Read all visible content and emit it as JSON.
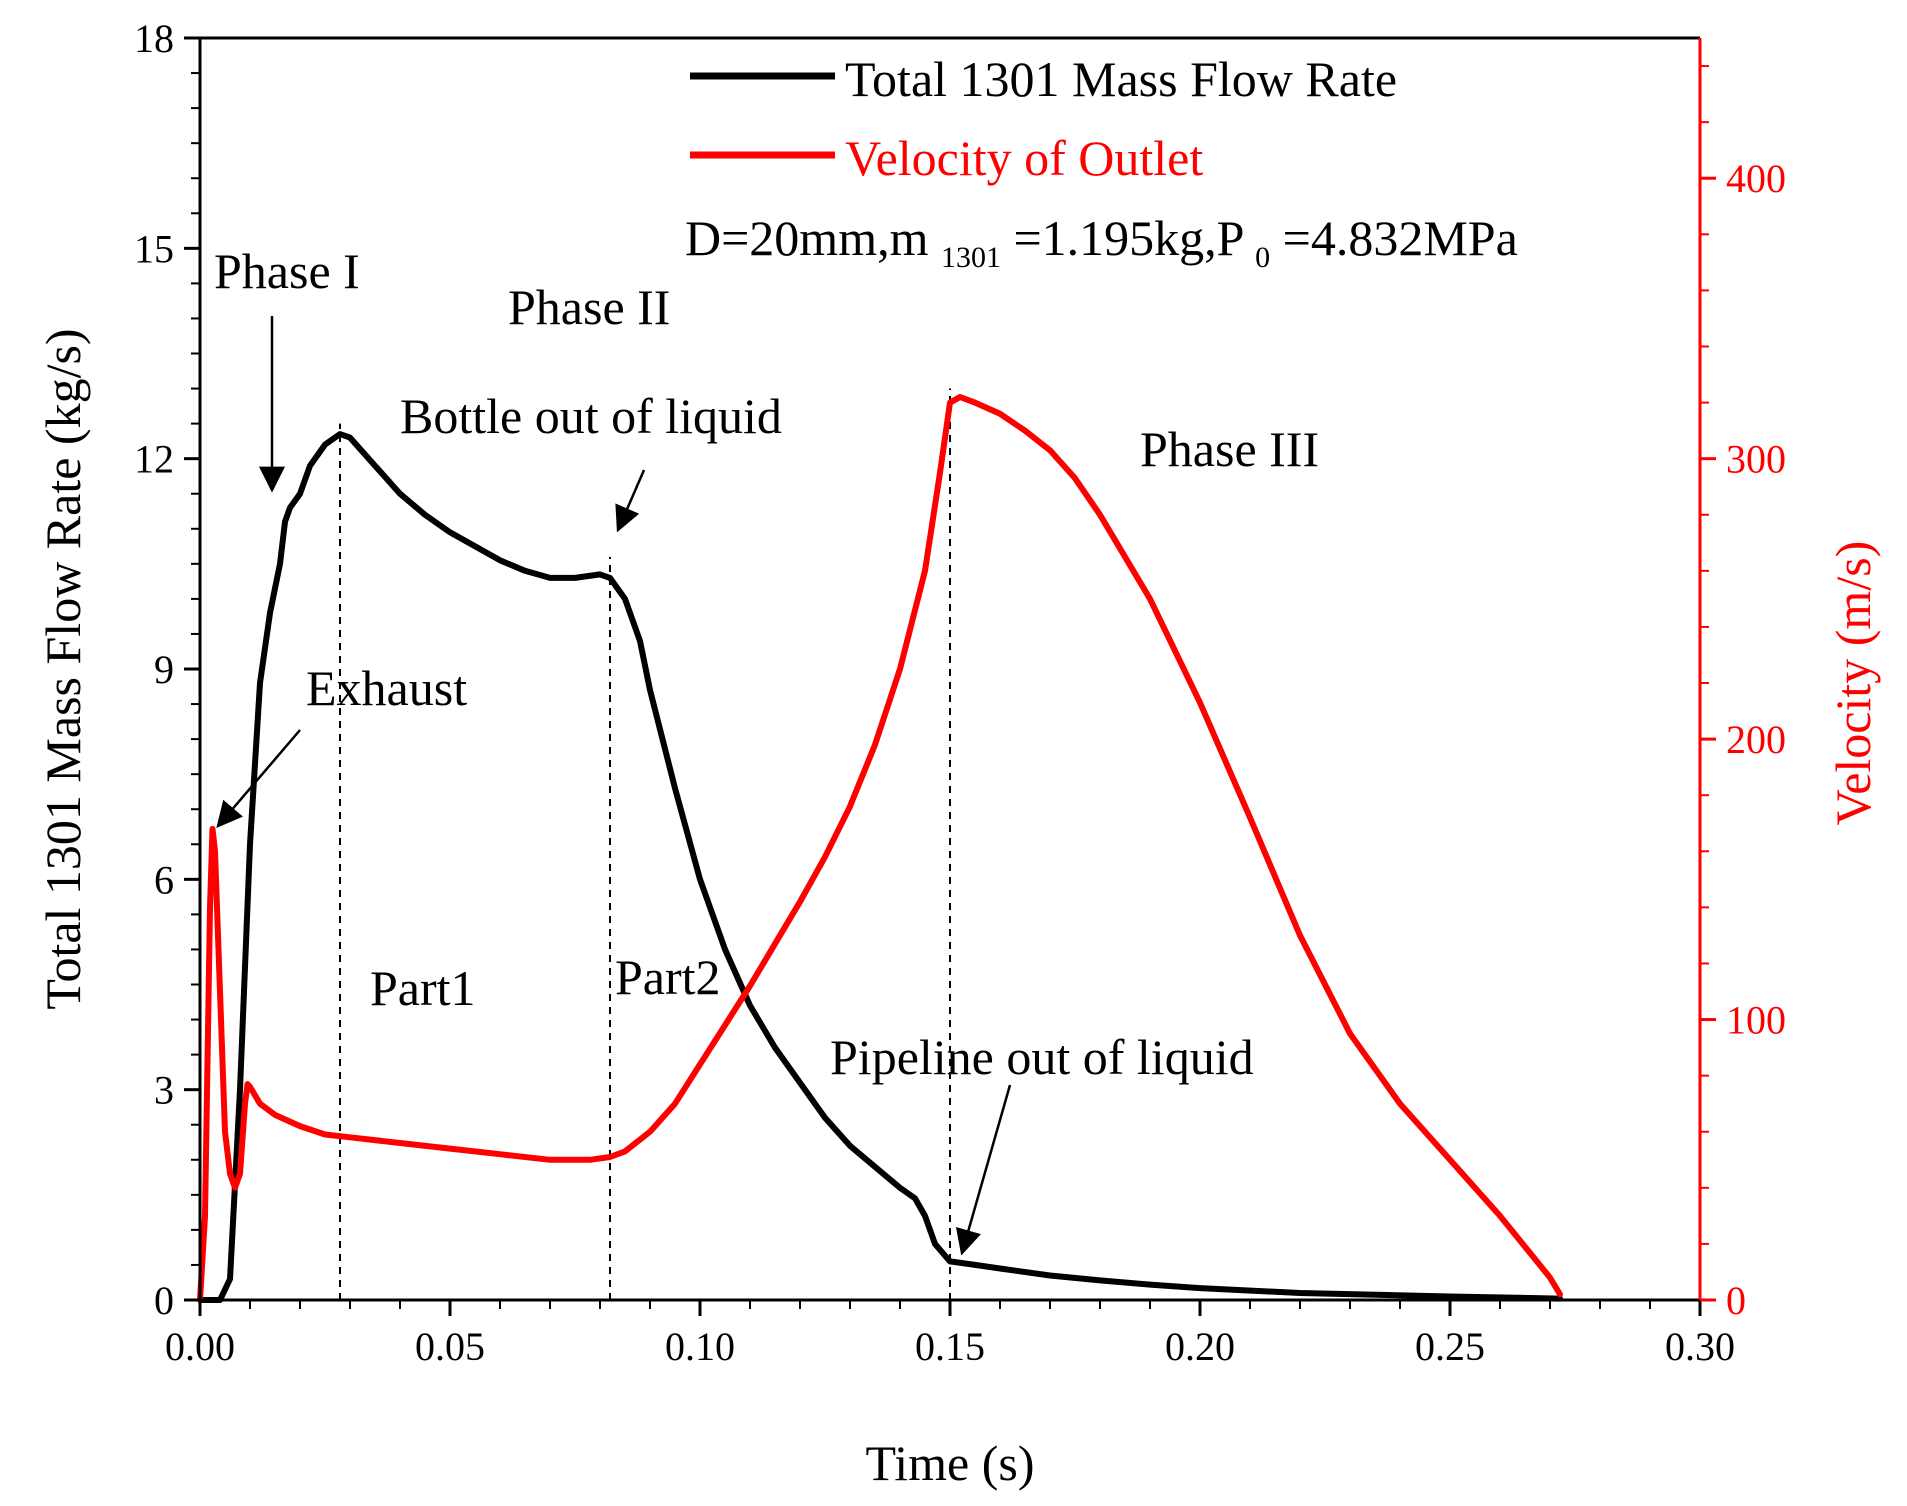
{
  "chart_data": {
    "type": "line",
    "legend_position": "top-right",
    "grid": false,
    "colors": {
      "mass": "#000000",
      "velocity": "#ff0000"
    },
    "xlabel": "Time (s)",
    "ylabel_left": "Total 1301 Mass Flow Rate (kg/s)",
    "ylabel_right": "Velocity (m/s)",
    "xlim": [
      0,
      0.3
    ],
    "ylim_left": [
      0,
      18
    ],
    "ylim_right": [
      0,
      450
    ],
    "x_ticks": [
      "0.00",
      "0.05",
      "0.10",
      "0.15",
      "0.20",
      "0.25",
      "0.30"
    ],
    "x_tick_values": [
      0,
      0.05,
      0.1,
      0.15,
      0.2,
      0.25,
      0.3
    ],
    "y_left_ticks": [
      "0",
      "3",
      "6",
      "9",
      "12",
      "15",
      "18"
    ],
    "y_left_tick_values": [
      0,
      3,
      6,
      9,
      12,
      15,
      18
    ],
    "y_right_ticks": [
      "0",
      "100",
      "200",
      "300",
      "400"
    ],
    "y_right_tick_values": [
      0,
      100,
      200,
      300,
      400
    ],
    "condition": {
      "prefix": "D=20mm,m",
      "m_sub": "1301",
      "middle": "=1.195kg,P",
      "p_sub": "0",
      "suffix": "=4.832MPa"
    },
    "series": [
      {
        "name": "Total 1301 Mass Flow Rate",
        "axis": "left",
        "color": "#000000",
        "points": [
          [
            0,
            0
          ],
          [
            0.004,
            0
          ],
          [
            0.006,
            0.3
          ],
          [
            0.008,
            3.0
          ],
          [
            0.01,
            6.5
          ],
          [
            0.012,
            8.8
          ],
          [
            0.014,
            9.8
          ],
          [
            0.016,
            10.5
          ],
          [
            0.017,
            11.1
          ],
          [
            0.018,
            11.3
          ],
          [
            0.02,
            11.5
          ],
          [
            0.022,
            11.9
          ],
          [
            0.025,
            12.2
          ],
          [
            0.028,
            12.35
          ],
          [
            0.03,
            12.3
          ],
          [
            0.035,
            11.9
          ],
          [
            0.04,
            11.5
          ],
          [
            0.045,
            11.2
          ],
          [
            0.05,
            10.95
          ],
          [
            0.055,
            10.75
          ],
          [
            0.06,
            10.55
          ],
          [
            0.065,
            10.4
          ],
          [
            0.07,
            10.3
          ],
          [
            0.075,
            10.3
          ],
          [
            0.08,
            10.35
          ],
          [
            0.082,
            10.3
          ],
          [
            0.085,
            10.0
          ],
          [
            0.088,
            9.4
          ],
          [
            0.09,
            8.7
          ],
          [
            0.095,
            7.3
          ],
          [
            0.1,
            6.0
          ],
          [
            0.105,
            5.0
          ],
          [
            0.11,
            4.2
          ],
          [
            0.115,
            3.6
          ],
          [
            0.12,
            3.1
          ],
          [
            0.125,
            2.6
          ],
          [
            0.13,
            2.2
          ],
          [
            0.135,
            1.9
          ],
          [
            0.14,
            1.6
          ],
          [
            0.143,
            1.45
          ],
          [
            0.145,
            1.2
          ],
          [
            0.147,
            0.8
          ],
          [
            0.15,
            0.55
          ],
          [
            0.155,
            0.5
          ],
          [
            0.16,
            0.45
          ],
          [
            0.17,
            0.35
          ],
          [
            0.18,
            0.28
          ],
          [
            0.19,
            0.22
          ],
          [
            0.2,
            0.17
          ],
          [
            0.22,
            0.1
          ],
          [
            0.25,
            0.05
          ],
          [
            0.272,
            0.02
          ]
        ]
      },
      {
        "name": "Velocity of Outlet",
        "axis": "right",
        "color": "#ff0000",
        "points": [
          [
            0,
            0
          ],
          [
            0.001,
            30
          ],
          [
            0.002,
            140
          ],
          [
            0.0025,
            168
          ],
          [
            0.003,
            160
          ],
          [
            0.004,
            110
          ],
          [
            0.005,
            60
          ],
          [
            0.006,
            45
          ],
          [
            0.007,
            40
          ],
          [
            0.008,
            45
          ],
          [
            0.009,
            70
          ],
          [
            0.0095,
            77
          ],
          [
            0.01,
            76
          ],
          [
            0.012,
            70
          ],
          [
            0.015,
            66
          ],
          [
            0.02,
            62
          ],
          [
            0.025,
            59
          ],
          [
            0.03,
            58
          ],
          [
            0.04,
            56
          ],
          [
            0.05,
            54
          ],
          [
            0.06,
            52
          ],
          [
            0.07,
            50
          ],
          [
            0.078,
            50
          ],
          [
            0.082,
            51
          ],
          [
            0.085,
            53
          ],
          [
            0.09,
            60
          ],
          [
            0.095,
            70
          ],
          [
            0.1,
            84
          ],
          [
            0.105,
            98
          ],
          [
            0.11,
            112
          ],
          [
            0.115,
            127
          ],
          [
            0.12,
            142
          ],
          [
            0.125,
            158
          ],
          [
            0.13,
            176
          ],
          [
            0.135,
            198
          ],
          [
            0.14,
            225
          ],
          [
            0.145,
            260
          ],
          [
            0.148,
            295
          ],
          [
            0.15,
            320
          ],
          [
            0.152,
            322
          ],
          [
            0.155,
            320
          ],
          [
            0.16,
            316
          ],
          [
            0.165,
            310
          ],
          [
            0.17,
            303
          ],
          [
            0.175,
            293
          ],
          [
            0.18,
            280
          ],
          [
            0.19,
            250
          ],
          [
            0.2,
            213
          ],
          [
            0.21,
            172
          ],
          [
            0.22,
            130
          ],
          [
            0.23,
            95
          ],
          [
            0.24,
            70
          ],
          [
            0.25,
            50
          ],
          [
            0.26,
            30
          ],
          [
            0.27,
            8
          ],
          [
            0.272,
            2
          ]
        ]
      }
    ],
    "annotations": [
      {
        "id": "phase1",
        "text": "Phase I"
      },
      {
        "id": "phase2",
        "text": "Phase II"
      },
      {
        "id": "phase3",
        "text": "Phase III"
      },
      {
        "id": "bottle",
        "text": "Bottle out of liquid"
      },
      {
        "id": "exhaust",
        "text": "Exhaust"
      },
      {
        "id": "part1",
        "text": "Part1"
      },
      {
        "id": "part2",
        "text": "Part2"
      },
      {
        "id": "pipeline",
        "text": "Pipeline out of liquid"
      }
    ],
    "vertical_markers_x": [
      0.028,
      0.082,
      0.15
    ]
  }
}
